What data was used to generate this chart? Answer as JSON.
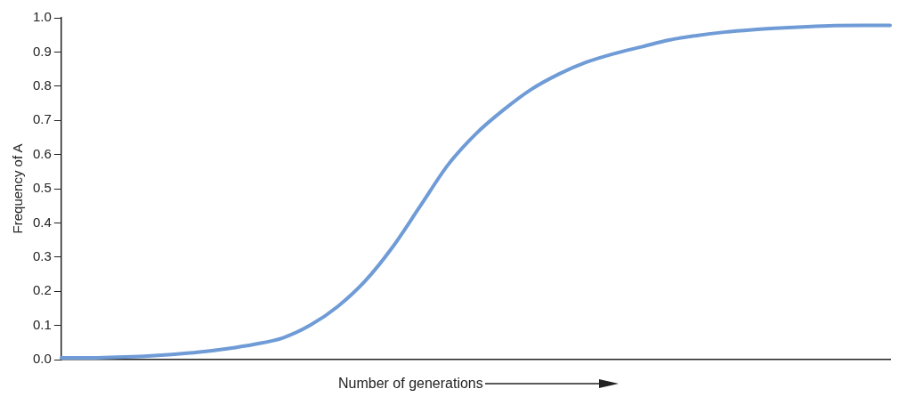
{
  "chart_data": {
    "type": "line",
    "xlabel": "Number of generations",
    "ylabel": "Frequency of A",
    "categories": [
      null,
      null,
      null,
      null,
      null,
      null,
      null,
      null,
      null,
      null,
      null,
      null,
      null,
      null,
      null,
      null,
      null,
      null,
      null,
      null,
      null,
      null,
      null,
      null,
      null,
      null,
      null,
      null,
      null,
      null,
      null
    ],
    "series": [
      {
        "color": "#6f9bd6",
        "values": [
          0.005,
          0.005,
          0.007,
          0.01,
          0.015,
          0.022,
          0.032,
          0.045,
          0.063,
          0.1,
          0.155,
          0.23,
          0.33,
          0.45,
          0.57,
          0.66,
          0.73,
          0.79,
          0.835,
          0.87,
          0.895,
          0.915,
          0.935,
          0.948,
          0.958,
          0.965,
          0.97,
          0.974,
          0.977,
          0.978,
          0.978
        ]
      }
    ],
    "ylim": [
      0,
      1
    ],
    "yticks": [
      {
        "value": 0,
        "label": "0.0"
      },
      0.1,
      0.2,
      0.3,
      0.4,
      0.5,
      0.6,
      0.7,
      0.8,
      0.9,
      {
        "value": 1,
        "label": "1.0"
      }
    ],
    "grid": false,
    "legend": false,
    "tick_labels": "y",
    "marker": "none",
    "line_style": "solid"
  }
}
